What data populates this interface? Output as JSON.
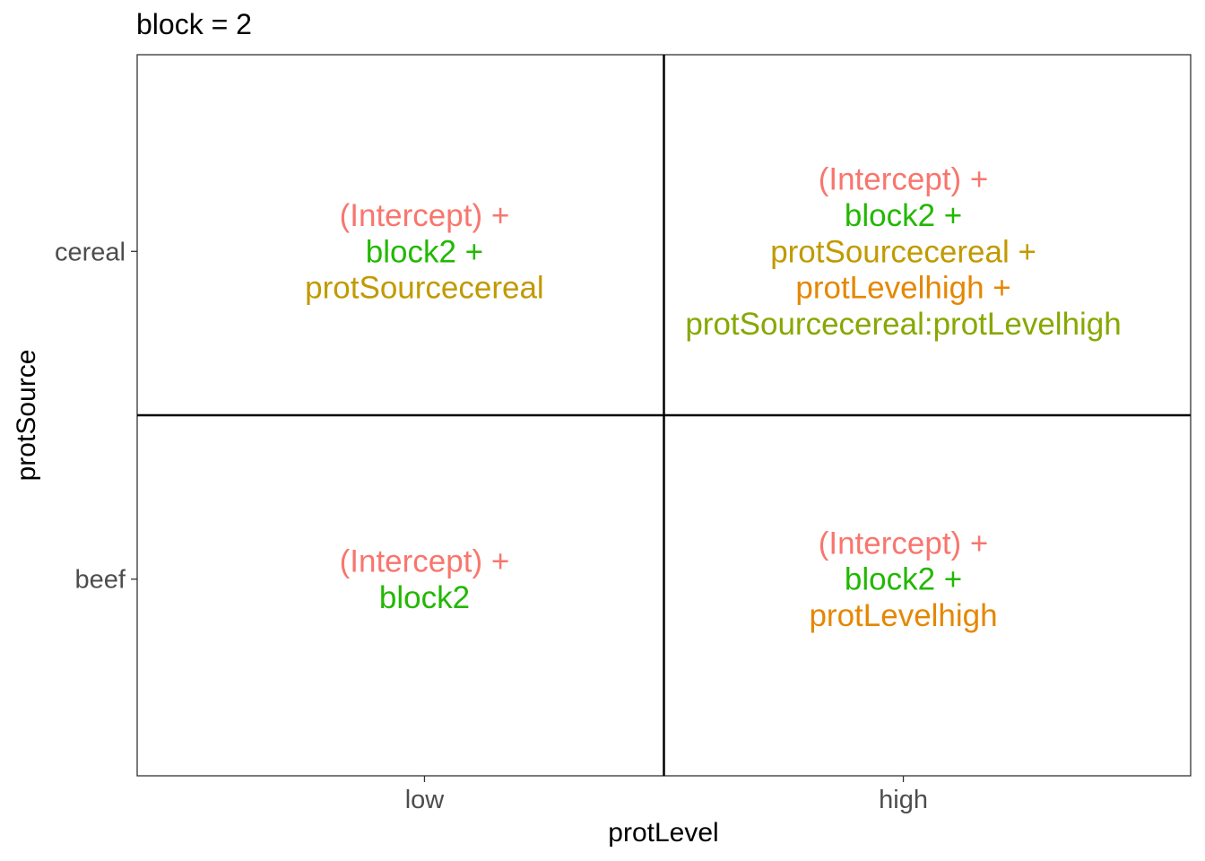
{
  "chart_data": {
    "type": "table",
    "title": "block = 2",
    "xlabel": "protLevel",
    "ylabel": "protSource",
    "x_categories": [
      "low",
      "high"
    ],
    "y_categories": [
      "beef",
      "cereal"
    ],
    "grid": false,
    "cells": [
      {
        "x": "low",
        "y": "cereal",
        "terms": [
          {
            "text": "(Intercept) +",
            "color": "#F8766D"
          },
          {
            "text": "block2 +",
            "color": "#22B800"
          },
          {
            "text": "protSourcecereal",
            "color": "#C19A00"
          }
        ]
      },
      {
        "x": "high",
        "y": "cereal",
        "terms": [
          {
            "text": "(Intercept) +",
            "color": "#F8766D"
          },
          {
            "text": "block2 +",
            "color": "#22B800"
          },
          {
            "text": "protSourcecereal +",
            "color": "#C19A00"
          },
          {
            "text": "protLevelhigh +",
            "color": "#E58700"
          },
          {
            "text": "protSourcecereal:protLevelhigh",
            "color": "#86A800"
          }
        ]
      },
      {
        "x": "low",
        "y": "beef",
        "terms": [
          {
            "text": "(Intercept) +",
            "color": "#F8766D"
          },
          {
            "text": "block2",
            "color": "#22B800"
          }
        ]
      },
      {
        "x": "high",
        "y": "beef",
        "terms": [
          {
            "text": "(Intercept) +",
            "color": "#F8766D"
          },
          {
            "text": "block2 +",
            "color": "#22B800"
          },
          {
            "text": "protLevelhigh",
            "color": "#E58700"
          }
        ]
      }
    ],
    "colors": {
      "panel_border": "#333333",
      "divider": "#000000",
      "tick_label": "#4D4D4D",
      "axis_title": "#000000"
    }
  }
}
